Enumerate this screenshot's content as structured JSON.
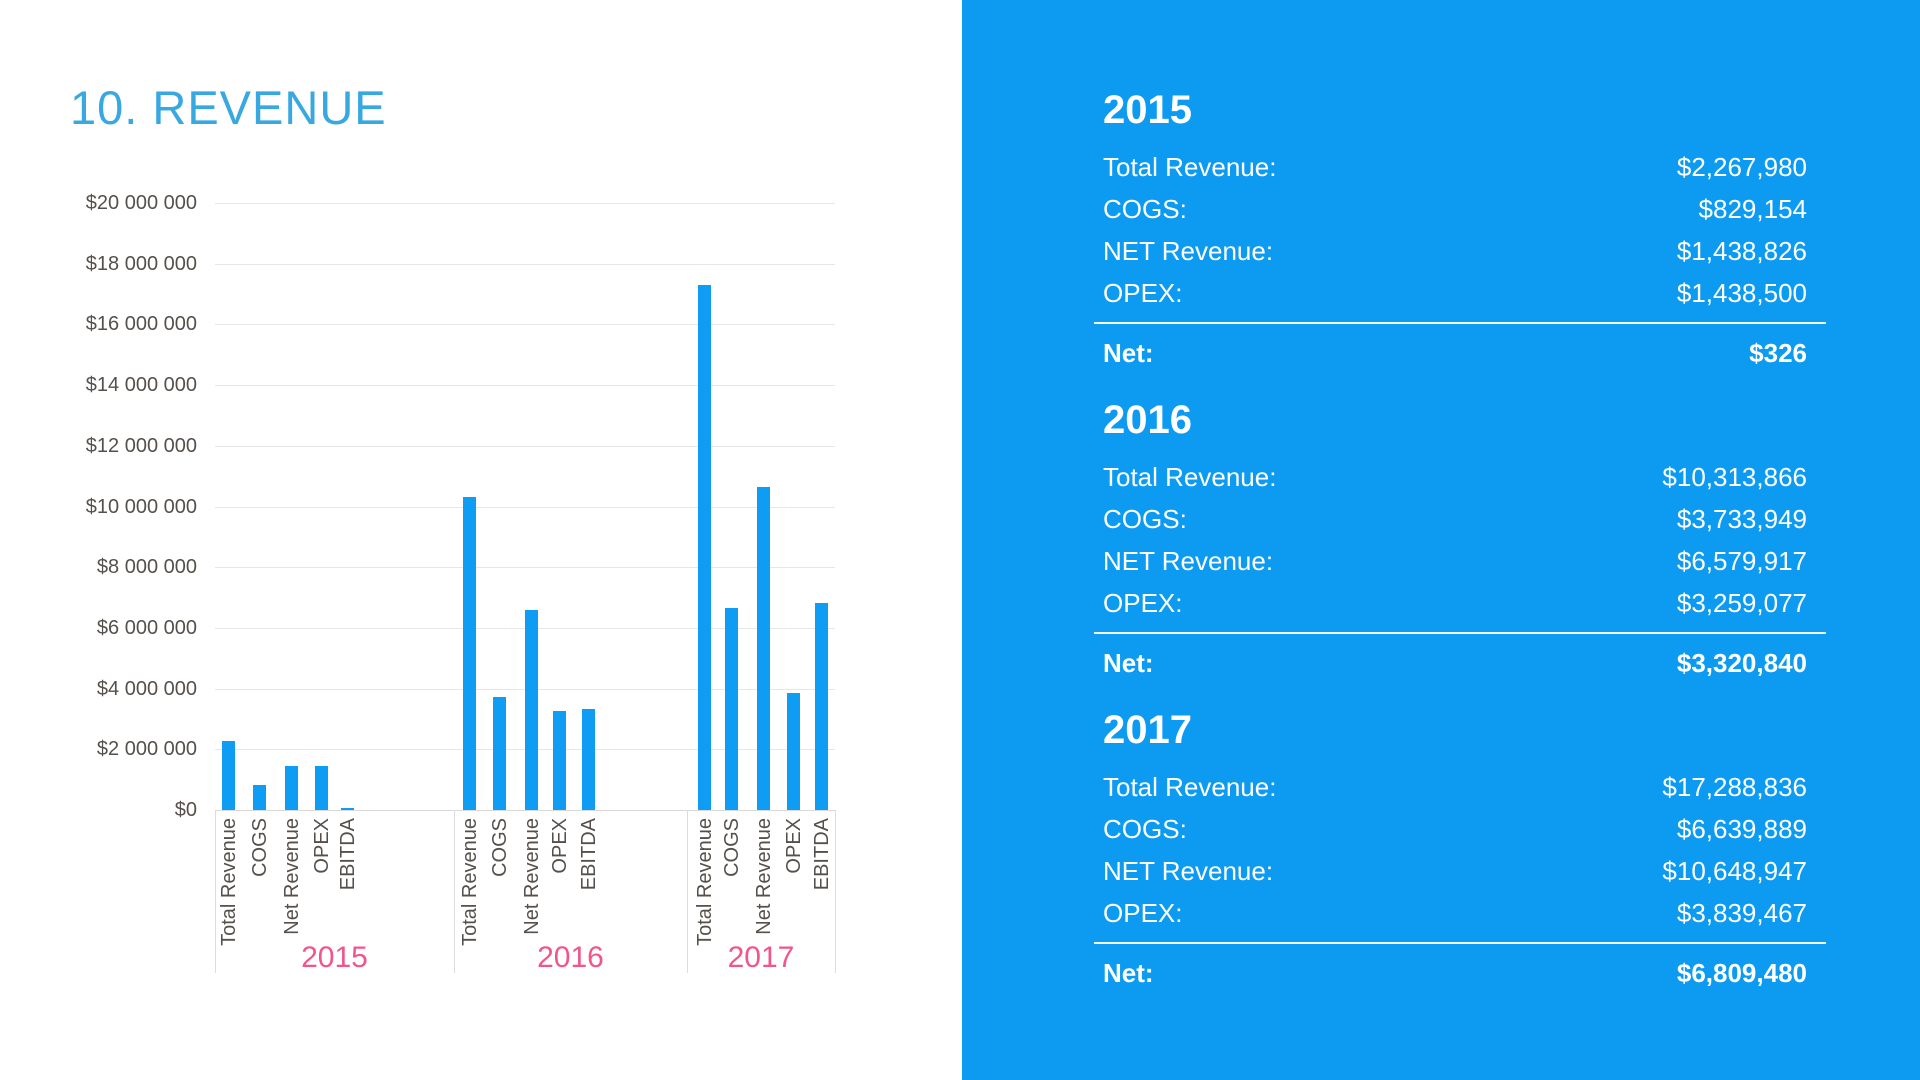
{
  "title": "10. REVENUE",
  "colors": {
    "title": "#38a8e0",
    "bar": "#0e9df3",
    "panel_background": "#0c9bf1",
    "year_label": "#f2548c",
    "axis_text": "#55504b",
    "gridline": "#e7e7e7",
    "panel_text": "#ffffff"
  },
  "chart_data": {
    "type": "bar",
    "title": "10. REVENUE",
    "xlabel": "",
    "ylabel": "",
    "ylim": [
      0,
      20000000
    ],
    "ytick_interval": 2000000,
    "ytick_prefix": "$",
    "ytick_thousands_separator": " ",
    "grid": true,
    "legend_position": "none",
    "categories": [
      "Total Revenue",
      "COGS",
      "Net Revenue",
      "OPEX",
      "EBITDA"
    ],
    "groups": [
      {
        "label": "2015",
        "values": [
          2267980,
          829154,
          1438826,
          1438500,
          326
        ]
      },
      {
        "label": "2016",
        "values": [
          10313866,
          3733949,
          6579917,
          3259077,
          3320840
        ]
      },
      {
        "label": "2017",
        "values": [
          17288836,
          6639889,
          10648947,
          3839467,
          6809480
        ]
      }
    ],
    "bar_color": "#0e9df3",
    "group_label_color": "#f2548c"
  },
  "panel": {
    "sections": [
      {
        "year": "2015",
        "rows": [
          {
            "label": "Total Revenue:",
            "value": "$2,267,980"
          },
          {
            "label": "COGS:",
            "value": "$829,154"
          },
          {
            "label": "NET Revenue:",
            "value": "$1,438,826"
          },
          {
            "label": "OPEX:",
            "value": "$1,438,500"
          }
        ],
        "net_label": "Net:",
        "net_value": "$326"
      },
      {
        "year": "2016",
        "rows": [
          {
            "label": "Total Revenue:",
            "value": "$10,313,866"
          },
          {
            "label": "COGS:",
            "value": "$3,733,949"
          },
          {
            "label": "NET Revenue:",
            "value": "$6,579,917"
          },
          {
            "label": "OPEX:",
            "value": "$3,259,077"
          }
        ],
        "net_label": "Net:",
        "net_value": "$3,320,840"
      },
      {
        "year": "2017",
        "rows": [
          {
            "label": "Total Revenue:",
            "value": "$17,288,836"
          },
          {
            "label": "COGS:",
            "value": "$6,639,889"
          },
          {
            "label": "NET Revenue:",
            "value": "$10,648,947"
          },
          {
            "label": "OPEX:",
            "value": "$3,839,467"
          }
        ],
        "net_label": "Net:",
        "net_value": "$6,809,480"
      }
    ]
  }
}
